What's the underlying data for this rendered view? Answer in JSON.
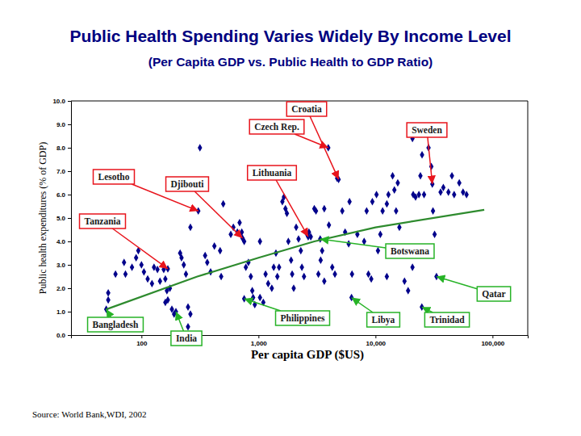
{
  "chart_data": {
    "type": "scatter",
    "title": "Public Health Spending Varies Widely By Income Level",
    "subtitle": "(Per Capita GDP vs. Public Health to GDP Ratio)",
    "x_label": "Per capita GDP ($US)",
    "y_label": "Public health expenditures (% of GDP)",
    "source": "Source: World Bank,WDI, 2002",
    "log": "x",
    "grid": false,
    "xlim": [
      25,
      200000
    ],
    "xticks": [
      100,
      {
        "value": 1000,
        "label": "1,000"
      },
      {
        "value": 10000,
        "label": "10,000"
      },
      {
        "value": 100000,
        "label": "100,000"
      }
    ],
    "ylim": [
      0,
      10
    ],
    "yticks": [
      {
        "value": 0,
        "label": "0.0"
      },
      {
        "value": 1,
        "label": "1.0"
      },
      {
        "value": 2,
        "label": "2.0"
      },
      {
        "value": 3,
        "label": "3.0"
      },
      {
        "value": 4,
        "label": "4.0"
      },
      {
        "value": 5,
        "label": "5.0"
      },
      {
        "value": 6,
        "label": "6.0"
      },
      {
        "value": 7,
        "label": "7.0"
      },
      {
        "value": 8,
        "label": "8.0"
      },
      {
        "value": 9,
        "label": "9.0"
      },
      {
        "value": 10,
        "label": "10.0"
      }
    ],
    "series": [
      {
        "type": "scatter",
        "color": "#00008b",
        "marker": "diamond",
        "x": [
          50,
          52,
          52,
          60,
          71,
          73,
          83,
          90,
          94,
          100,
          105,
          113,
          123,
          128,
          137,
          144,
          155,
          160,
          168,
          160,
          165,
          175,
          182,
          190,
          197,
          214,
          220,
          230,
          240,
          250,
          250,
          262,
          306,
          316,
          262,
          350,
          365,
          390,
          420,
          470,
          480,
          500,
          580,
          610,
          660,
          690,
          720,
          755,
          780,
          820,
          860,
          885,
          930,
          1030,
          1100,
          1150,
          1210,
          1300,
          1350,
          1410,
          1450,
          1500,
          1600,
          1650,
          1700,
          1750,
          1800,
          1900,
          1940,
          2000,
          2100,
          2200,
          2300,
          2350,
          2450,
          2600,
          2700,
          2800,
          3000,
          3100,
          3250,
          3400,
          3500,
          3650,
          4000,
          4270,
          4500,
          4700,
          3950,
          5200,
          5500,
          5900,
          6000,
          6300,
          6240,
          7000,
          8000,
          8400,
          8700,
          9200,
          9400,
          10200,
          10500,
          11000,
          11500,
          12500,
          12900,
          14000,
          14500,
          15000,
          15500,
          16000,
          16500,
          17700,
          19000,
          20700,
          21000,
          22000,
          23500,
          24200,
          25000,
          26000,
          28400,
          24900,
          30000,
          31000,
          32000,
          33200,
          36000,
          38000,
          42000,
          45000,
          47000,
          52000,
          56000,
          60000,
          20700,
          12500,
          3650,
          1030,
          900,
          4840,
          755,
          3370,
          168,
          730,
          2660,
          30600
        ],
        "values": [
          1.1,
          1.8,
          1.5,
          2.6,
          3.1,
          2.6,
          2.9,
          3.3,
          3.6,
          3.0,
          2.7,
          2.4,
          2.2,
          2.9,
          2.8,
          2.3,
          2.8,
          2.4,
          1.5,
          1.4,
          1.9,
          2.0,
          1.1,
          0.9,
          1.0,
          3.5,
          3.3,
          3.0,
          2.6,
          0.35,
          1.2,
          0.9,
          5.3,
          8.0,
          4.6,
          3.4,
          3.1,
          2.7,
          3.8,
          3.6,
          2.5,
          5.6,
          4.3,
          4.6,
          4.4,
          4.8,
          4.4,
          4.0,
          2.9,
          3.1,
          2.5,
          1.9,
          1.3,
          4.0,
          1.4,
          2.6,
          2.2,
          2.0,
          2.9,
          3.5,
          2.5,
          2.9,
          5.7,
          5.9,
          5.4,
          5.2,
          4.0,
          3.2,
          2.6,
          2.0,
          4.6,
          4.1,
          3.6,
          2.9,
          2.5,
          4.3,
          4.4,
          4.2,
          5.4,
          5.3,
          2.6,
          3.2,
          3.6,
          5.4,
          4.7,
          2.9,
          2.6,
          6.7,
          8.0,
          5.3,
          4.4,
          3.9,
          5.7,
          2.6,
          1.6,
          4.3,
          4.0,
          5.3,
          2.6,
          2.4,
          5.7,
          6.0,
          3.6,
          4.3,
          5.3,
          5.6,
          6.0,
          6.8,
          6.2,
          5.3,
          6.5,
          4.6,
          3.6,
          2.3,
          1.9,
          2.9,
          6.0,
          5.9,
          6.0,
          6.8,
          7.7,
          6.0,
          8.0,
          1.2,
          7.2,
          5.3,
          4.3,
          2.5,
          6.1,
          6.3,
          6.1,
          6.8,
          6.0,
          6.5,
          6.1,
          6.0,
          8.4,
          2.5,
          2.3,
          1.6,
          1.6,
          6.65,
          1.55,
          4.1,
          2.83,
          4.14,
          4.2,
          6.45
        ]
      },
      {
        "type": "line",
        "color": "#2e8b2e",
        "line_style": "solid",
        "x": [
          50,
          300,
          1000,
          3000,
          10000,
          85000
        ],
        "values": [
          1.1,
          2.5,
          3.3,
          4.0,
          4.6,
          5.35
        ]
      }
    ],
    "annotations": [
      {
        "text": "Croatia",
        "x": 4840,
        "y": 6.65,
        "color": "#e8141c"
      },
      {
        "text": "Czech Rep.",
        "x": 3950,
        "y": 8.0,
        "color": "#e8141c"
      },
      {
        "text": "Sweden",
        "x": 30600,
        "y": 6.45,
        "color": "#e8141c"
      },
      {
        "text": "Lithuania",
        "x": 2660,
        "y": 4.2,
        "color": "#e8141c"
      },
      {
        "text": "Djibouti",
        "x": 730,
        "y": 4.14,
        "color": "#e8141c"
      },
      {
        "text": "Lesotho",
        "x": 306,
        "y": 5.3,
        "color": "#e8141c"
      },
      {
        "text": "Tanzania",
        "x": 168,
        "y": 2.83,
        "color": "#e8141c"
      },
      {
        "text": "Botswana",
        "x": 3370,
        "y": 4.1,
        "color": "#27b327"
      },
      {
        "text": "Qatar",
        "x": 33200,
        "y": 2.5,
        "color": "#27b327"
      },
      {
        "text": "Trinidad",
        "x": 24900,
        "y": 1.2,
        "color": "#27b327"
      },
      {
        "text": "Libya",
        "x": 6240,
        "y": 1.6,
        "color": "#27b327"
      },
      {
        "text": "Philippines",
        "x": 755,
        "y": 1.55,
        "color": "#27b327"
      },
      {
        "text": "Bangladesh",
        "x": 50,
        "y": 1.1,
        "color": "#27b327"
      },
      {
        "text": "India",
        "x": 197,
        "y": 1.0,
        "color": "#27b327"
      }
    ]
  }
}
